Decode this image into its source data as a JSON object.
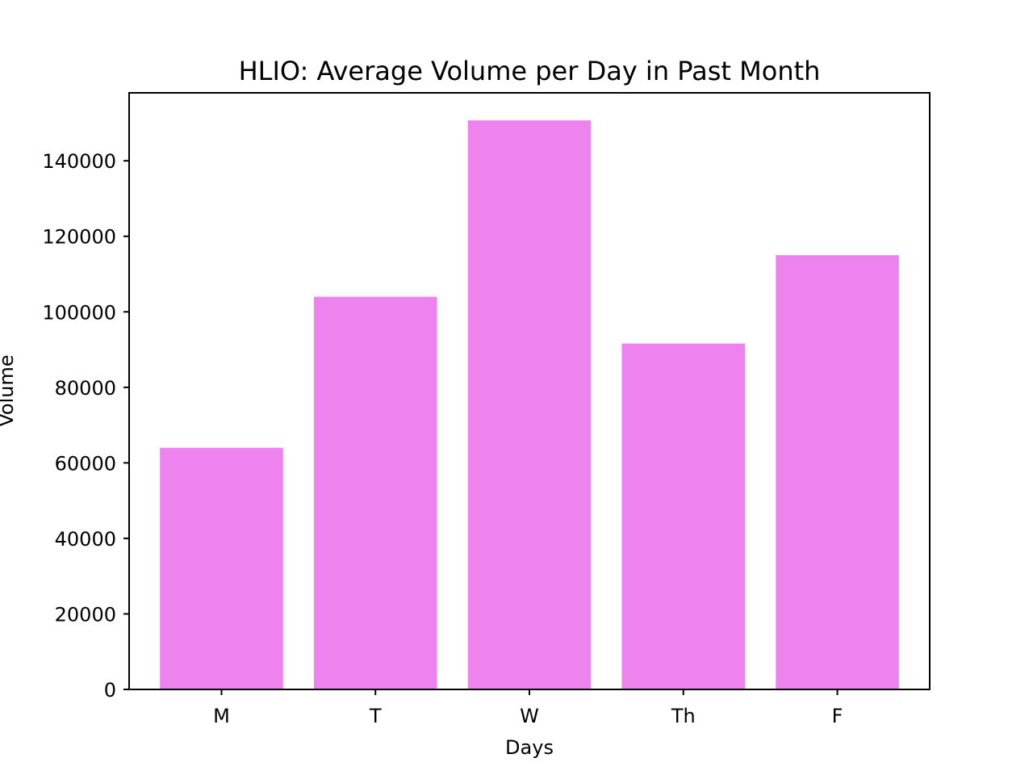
{
  "chart_data": {
    "type": "bar",
    "title": "HLIO: Average Volume per Day in Past Month",
    "xlabel": "Days",
    "ylabel": "Volume",
    "categories": [
      "M",
      "T",
      "W",
      "Th",
      "F"
    ],
    "values": [
      64000,
      104000,
      150700,
      91600,
      115000
    ],
    "ylim": [
      0,
      158000
    ],
    "yticks": [
      0,
      20000,
      40000,
      60000,
      80000,
      100000,
      120000,
      140000
    ],
    "bar_color": "#ee82ee",
    "grid": false,
    "legend": "none"
  }
}
